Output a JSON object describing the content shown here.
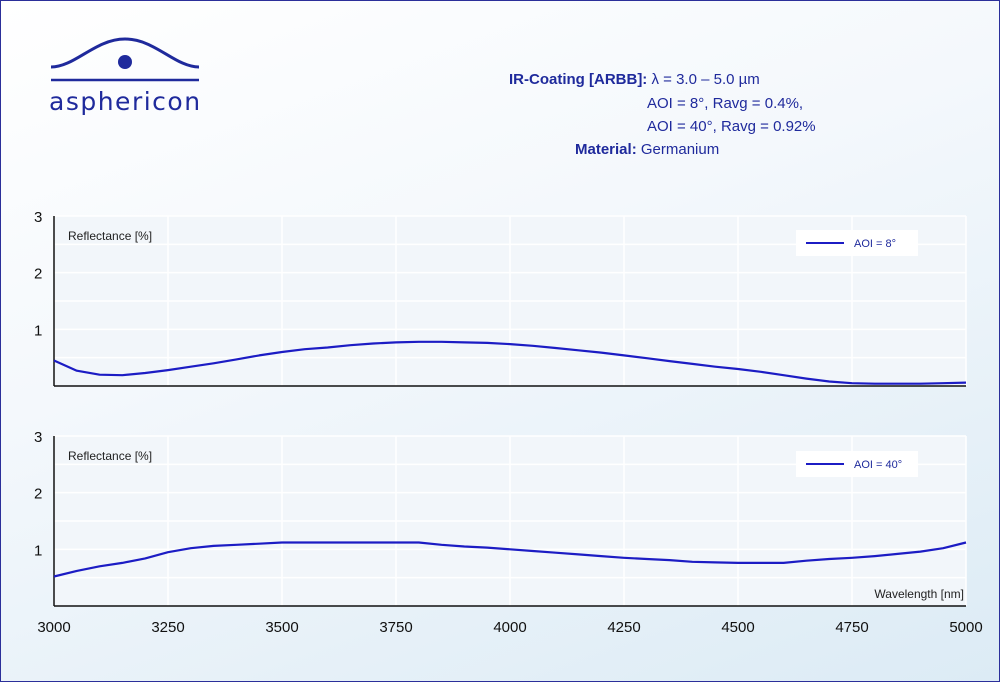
{
  "brand": {
    "name": "asphericon"
  },
  "specs": {
    "coating_label": "IR-Coating [ARBB]:",
    "coating_range": "λ = 3.0 – 5.0 µm",
    "aoi_line_1": "AOI = 8°, Ravg = 0.4%,",
    "aoi_line_2": "AOI = 40°, Ravg = 0.92%",
    "material_label": "Material:",
    "material_value": "Germanium"
  },
  "colors": {
    "accent": "#1f2a9c",
    "curve": "#1c1cc4",
    "panel_bg": "#f2f6fa",
    "grid": "#ffffff"
  },
  "chart_data": [
    {
      "type": "line",
      "ylabel": "Reflectance [%]",
      "xlabel": "",
      "xlim": [
        3000,
        5000
      ],
      "ylim": [
        0,
        3
      ],
      "yticks": [
        1,
        2,
        3
      ],
      "grid": true,
      "legend_position": "top-right",
      "series": [
        {
          "name": "AOI = 8°",
          "x": [
            3000,
            3050,
            3100,
            3150,
            3200,
            3250,
            3300,
            3350,
            3400,
            3450,
            3500,
            3550,
            3600,
            3650,
            3700,
            3750,
            3800,
            3850,
            3900,
            3950,
            4000,
            4050,
            4100,
            4150,
            4200,
            4250,
            4300,
            4350,
            4400,
            4450,
            4500,
            4550,
            4600,
            4650,
            4700,
            4750,
            4800,
            4850,
            4900,
            4950,
            5000
          ],
          "y": [
            0.45,
            0.27,
            0.2,
            0.19,
            0.23,
            0.28,
            0.34,
            0.4,
            0.47,
            0.54,
            0.6,
            0.65,
            0.68,
            0.72,
            0.75,
            0.77,
            0.78,
            0.78,
            0.77,
            0.76,
            0.74,
            0.71,
            0.67,
            0.63,
            0.59,
            0.54,
            0.49,
            0.44,
            0.39,
            0.34,
            0.3,
            0.25,
            0.19,
            0.13,
            0.08,
            0.05,
            0.04,
            0.04,
            0.04,
            0.05,
            0.06
          ]
        }
      ]
    },
    {
      "type": "line",
      "ylabel": "Reflectance [%]",
      "xlabel": "Wavelength [nm]",
      "xlim": [
        3000,
        5000
      ],
      "ylim": [
        0,
        3
      ],
      "yticks": [
        1,
        2,
        3
      ],
      "xticks": [
        3000,
        3250,
        3500,
        3750,
        4000,
        4250,
        4500,
        4750,
        5000
      ],
      "grid": true,
      "legend_position": "top-right",
      "series": [
        {
          "name": "AOI = 40°",
          "x": [
            3000,
            3050,
            3100,
            3150,
            3200,
            3250,
            3300,
            3350,
            3400,
            3450,
            3500,
            3550,
            3600,
            3650,
            3700,
            3750,
            3800,
            3850,
            3900,
            3950,
            4000,
            4050,
            4100,
            4150,
            4200,
            4250,
            4300,
            4350,
            4400,
            4450,
            4500,
            4550,
            4600,
            4650,
            4700,
            4750,
            4800,
            4850,
            4900,
            4950,
            5000
          ],
          "y": [
            0.52,
            0.62,
            0.7,
            0.76,
            0.84,
            0.95,
            1.02,
            1.06,
            1.08,
            1.1,
            1.12,
            1.12,
            1.12,
            1.12,
            1.12,
            1.12,
            1.12,
            1.08,
            1.05,
            1.03,
            1.0,
            0.97,
            0.94,
            0.91,
            0.88,
            0.85,
            0.83,
            0.81,
            0.78,
            0.77,
            0.76,
            0.76,
            0.76,
            0.8,
            0.83,
            0.85,
            0.88,
            0.92,
            0.96,
            1.02,
            1.12
          ]
        }
      ]
    }
  ]
}
